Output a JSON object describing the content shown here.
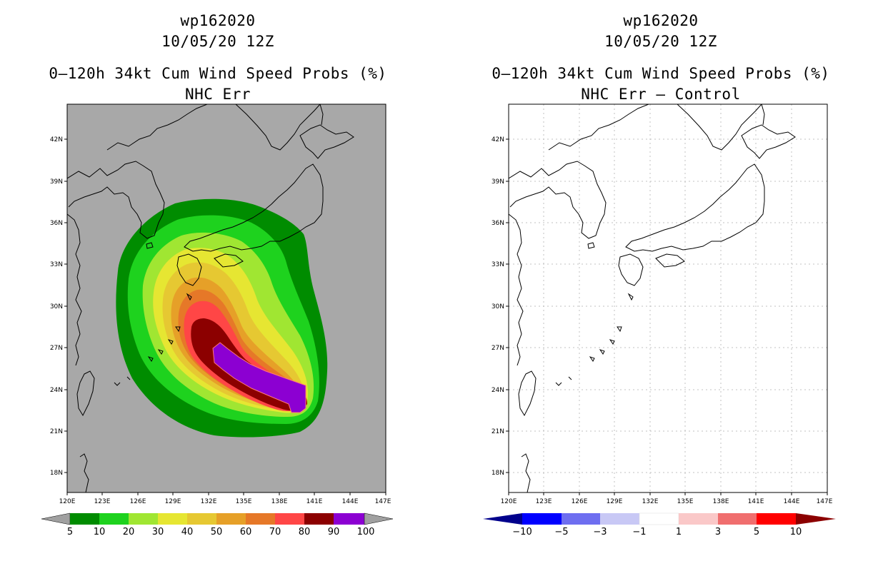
{
  "left": {
    "storm_id": "wp162020",
    "datetime": "10/05/20 12Z",
    "title": "0–120h 34kt Cum Wind Speed Probs (%)",
    "subtitle": "NHC Err",
    "colorbar": {
      "labels": [
        "5",
        "10",
        "20",
        "30",
        "40",
        "50",
        "60",
        "70",
        "80",
        "90",
        "100"
      ],
      "colors": [
        "#a0a0a0",
        "#008c00",
        "#1ed21e",
        "#a0e632",
        "#e6e632",
        "#e6c832",
        "#e6a028",
        "#e67828",
        "#ff4646",
        "#8c0000",
        "#8c00d2",
        "#a0a0a0"
      ]
    }
  },
  "right": {
    "storm_id": "wp162020",
    "datetime": "10/05/20 12Z",
    "title": "0–120h 34kt Cum Wind Speed Probs (%)",
    "subtitle": "NHC Err – Control",
    "colorbar": {
      "labels": [
        "−10",
        "−5",
        "−3",
        "−1",
        "1",
        "3",
        "5",
        "10"
      ],
      "colors": [
        "#00008c",
        "#0000ff",
        "#6e6ef0",
        "#c8c8f5",
        "#ffffff",
        "#fac8c8",
        "#f06e6e",
        "#ff0000",
        "#8c0000"
      ]
    }
  },
  "axes": {
    "lat_labels": [
      "42N",
      "39N",
      "36N",
      "33N",
      "30N",
      "27N",
      "24N",
      "21N",
      "18N"
    ],
    "lon_labels": [
      "120E",
      "123E",
      "126E",
      "129E",
      "132E",
      "135E",
      "138E",
      "141E",
      "144E",
      "147E"
    ]
  },
  "chart_data": [
    {
      "type": "heatmap",
      "title": "0–120h 34kt Cum Wind Speed Probs (%) — NHC Err",
      "x_range_deg_e": [
        120,
        147
      ],
      "y_range_deg_n": [
        16.5,
        44.5
      ],
      "levels_pct": [
        5,
        10,
        20,
        30,
        40,
        50,
        60,
        70,
        80,
        90,
        100
      ],
      "track_center_lonlat": [
        [
          133.5,
          27.5
        ],
        [
          140.5,
          23.0
        ]
      ]
    },
    {
      "type": "heatmap",
      "title": "0–120h 34kt Cum Wind Speed Probs (%) — NHC Err – Control",
      "x_range_deg_e": [
        120,
        147
      ],
      "y_range_deg_n": [
        16.5,
        44.5
      ],
      "levels_pct": [
        -10,
        -5,
        -3,
        -1,
        1,
        3,
        5,
        10
      ]
    }
  ]
}
